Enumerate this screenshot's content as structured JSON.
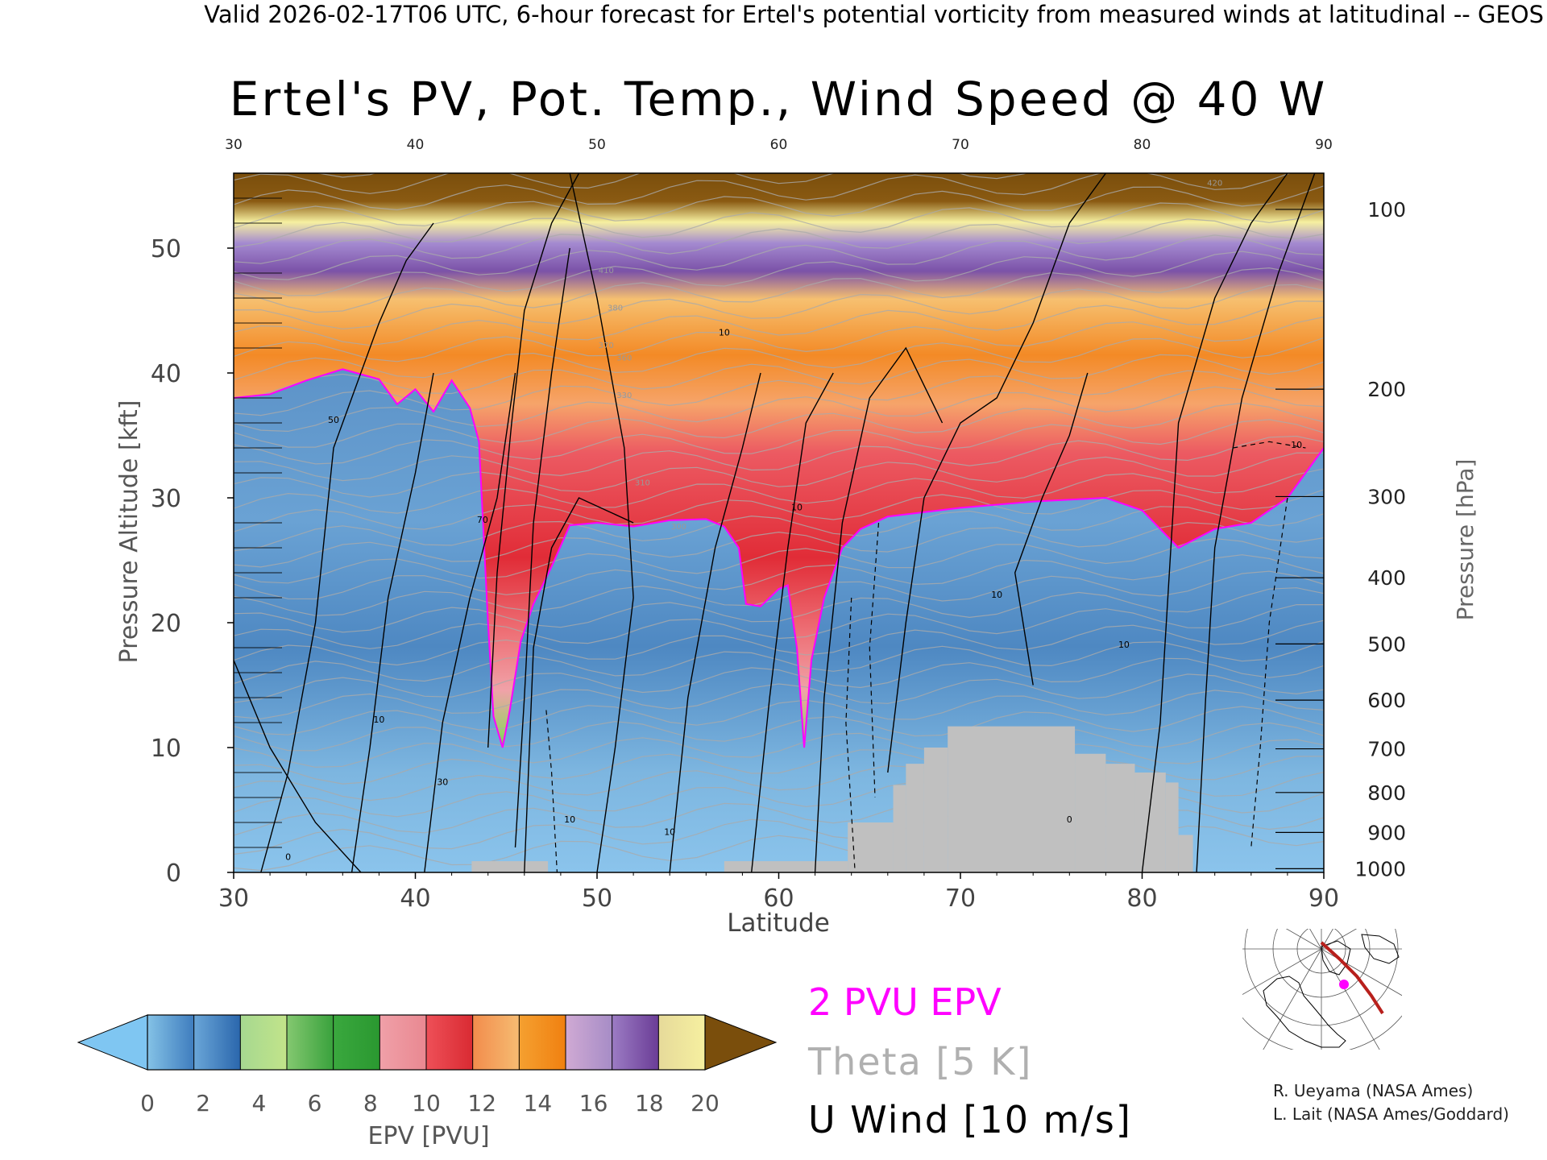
{
  "header": "Valid 2026-02-17T06 UTC, 6-hour forecast for Ertel's potential vorticity from measured winds at latitudinal -- GEOS",
  "chart_data": {
    "type": "area",
    "title": "Ertel's PV, Pot. Temp., Wind Speed @ 40 W",
    "xlabel": "Latitude",
    "ylabel": "Pressure Altitude [kft]",
    "y2label": "Pressure [hPa]",
    "xlim": [
      30,
      90
    ],
    "ylim": [
      0,
      56
    ],
    "x_ticks": [
      30,
      40,
      50,
      60,
      70,
      80,
      90
    ],
    "x_tick_labels": [
      "30",
      "40",
      "50",
      "60",
      "70",
      "80",
      "90"
    ],
    "y_ticks": [
      0,
      10,
      20,
      30,
      40,
      50
    ],
    "y_tick_labels": [
      "0",
      "10",
      "20",
      "30",
      "40",
      "50"
    ],
    "pressure_ticks": [
      {
        "hpa": 100,
        "kft": 53.1
      },
      {
        "hpa": 200,
        "kft": 38.7
      },
      {
        "hpa": 300,
        "kft": 30.1
      },
      {
        "hpa": 400,
        "kft": 23.6
      },
      {
        "hpa": 500,
        "kft": 18.3
      },
      {
        "hpa": 600,
        "kft": 13.8
      },
      {
        "hpa": 700,
        "kft": 9.9
      },
      {
        "hpa": 800,
        "kft": 6.4
      },
      {
        "hpa": 900,
        "kft": 3.2
      },
      {
        "hpa": 1000,
        "kft": 0.3
      }
    ],
    "pressure_tick_labels": [
      "100",
      "200",
      "300",
      "400",
      "500",
      "600",
      "700",
      "800",
      "900",
      "1000"
    ],
    "tropopause_2pvu_kft": [
      [
        30,
        38.0
      ],
      [
        32,
        38.3
      ],
      [
        34,
        39.4
      ],
      [
        36,
        40.3
      ],
      [
        38,
        39.5
      ],
      [
        39,
        37.5
      ],
      [
        40,
        38.7
      ],
      [
        41,
        36.9
      ],
      [
        42,
        39.4
      ],
      [
        43,
        37.2
      ],
      [
        43.5,
        34.5
      ],
      [
        44,
        20.0
      ],
      [
        44.3,
        12.5
      ],
      [
        44.8,
        10.0
      ],
      [
        45.2,
        13.0
      ],
      [
        45.8,
        18.5
      ],
      [
        46.5,
        21.5
      ],
      [
        47.5,
        24.5
      ],
      [
        48.5,
        27.8
      ],
      [
        50,
        28.0
      ],
      [
        52,
        27.7
      ],
      [
        54,
        28.2
      ],
      [
        56,
        28.3
      ],
      [
        57,
        27.7
      ],
      [
        57.8,
        26.0
      ],
      [
        58.2,
        21.5
      ],
      [
        59,
        21.3
      ],
      [
        60,
        22.7
      ],
      [
        60.5,
        23.0
      ],
      [
        61,
        18.0
      ],
      [
        61.4,
        10.0
      ],
      [
        61.8,
        17.0
      ],
      [
        62.5,
        22.0
      ],
      [
        63.5,
        26.0
      ],
      [
        64.5,
        27.5
      ],
      [
        66,
        28.5
      ],
      [
        70,
        29.2
      ],
      [
        74,
        29.7
      ],
      [
        78,
        30.0
      ],
      [
        80,
        29.0
      ],
      [
        82,
        26.0
      ],
      [
        84,
        27.5
      ],
      [
        86,
        28.0
      ],
      [
        88,
        30.0
      ],
      [
        90,
        34.0
      ]
    ],
    "surface_mask": [
      {
        "lat_start": 43.1,
        "lat_end": 47.3,
        "top_kft": 0.9
      },
      {
        "lat_start": 57.0,
        "lat_end": 63.8,
        "top_kft": 0.9
      },
      {
        "lat_start": 63.8,
        "lat_end": 66.3,
        "top_kft": 4.0
      },
      {
        "lat_start": 66.3,
        "lat_end": 67.0,
        "top_kft": 7.0
      },
      {
        "lat_start": 67.0,
        "lat_end": 68.0,
        "top_kft": 8.7
      },
      {
        "lat_start": 68.0,
        "lat_end": 69.3,
        "top_kft": 10.0
      },
      {
        "lat_start": 69.3,
        "lat_end": 76.3,
        "top_kft": 11.7
      },
      {
        "lat_start": 76.3,
        "lat_end": 78.0,
        "top_kft": 9.5
      },
      {
        "lat_start": 78.0,
        "lat_end": 79.6,
        "top_kft": 8.7
      },
      {
        "lat_start": 79.6,
        "lat_end": 81.3,
        "top_kft": 8.0
      },
      {
        "lat_start": 81.3,
        "lat_end": 82.0,
        "top_kft": 7.2
      },
      {
        "lat_start": 82.0,
        "lat_end": 82.8,
        "top_kft": 3.0
      }
    ],
    "u_wind_label_values": [
      "50",
      "10",
      "0",
      "70",
      "10",
      "10",
      "10",
      "10",
      "10",
      "0",
      "10",
      "30",
      "10"
    ],
    "theta_label_values": [
      "420",
      "410",
      "380",
      "370",
      "360",
      "330",
      "310",
      "300"
    ],
    "colorbar": {
      "label": "EPV [PVU]",
      "ticks": [
        "0",
        "2",
        "4",
        "6",
        "8",
        "10",
        "12",
        "14",
        "16",
        "18",
        "20"
      ],
      "under_color": "#7fc6f2",
      "over_color": "#7a4e0c",
      "bands": [
        [
          "#84c2e6",
          "#3e7cbe"
        ],
        [
          "#6aa6d8",
          "#2a66ac"
        ],
        [
          "#a6d890",
          "#c2e48a"
        ],
        [
          "#84c870",
          "#38a13c"
        ],
        [
          "#3aa83e",
          "#2a9830"
        ],
        [
          "#f0a0a8",
          "#e98891"
        ],
        [
          "#ee5058",
          "#d92a32"
        ],
        [
          "#f28c4c",
          "#f6bc72"
        ],
        [
          "#f5a030",
          "#f08010"
        ],
        [
          "#d0aad4",
          "#a68cc6"
        ],
        [
          "#9c7cc4",
          "#6a3c96"
        ],
        [
          "#e6da9a",
          "#f6f0a0"
        ]
      ]
    }
  },
  "legend": {
    "epv": "2 PVU EPV",
    "theta": "Theta [5 K]",
    "uwind": "U Wind [10 m/s]"
  },
  "colors": {
    "epv_contour": "#ff00ff",
    "theta_contour": "#aaaaaa",
    "uwind_contour": "#000000",
    "topography": "#c0c0c0",
    "flight_track": "#b8201c",
    "location_marker": "#ff00ff"
  },
  "credits": {
    "line1": "R. Ueyama (NASA Ames)",
    "line2": "L. Lait (NASA Ames/Goddard)"
  }
}
